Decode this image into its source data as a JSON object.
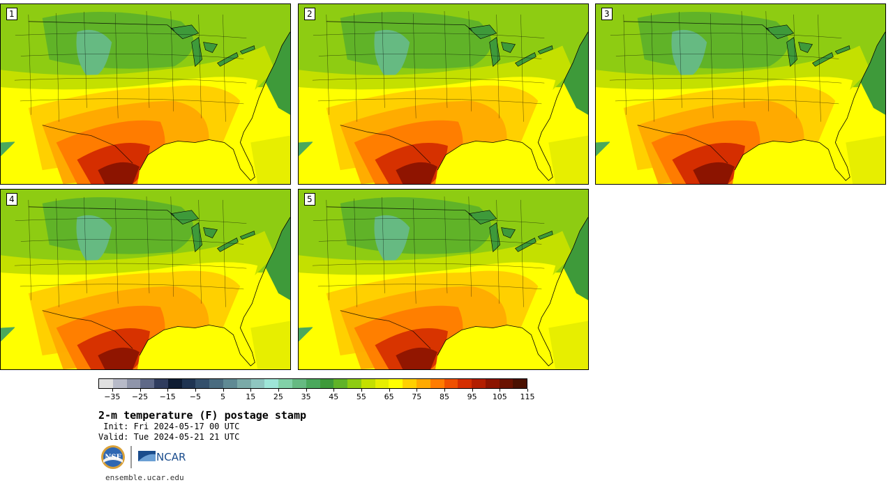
{
  "panels": [
    {
      "label": "1",
      "heat": 1.0
    },
    {
      "label": "2",
      "heat": 0.92
    },
    {
      "label": "3",
      "heat": 0.97
    },
    {
      "label": "4",
      "heat": 0.9
    },
    {
      "label": "5",
      "heat": 0.88
    }
  ],
  "colorbar": {
    "min": -40,
    "max": 120,
    "step": 5,
    "tick_labels": [
      "−35",
      "−25",
      "−15",
      "−5",
      "5",
      "15",
      "25",
      "35",
      "45",
      "55",
      "65",
      "75",
      "85",
      "95",
      "105",
      "115"
    ],
    "colors": [
      "#e0e0e0",
      "#b7bac8",
      "#8f95aa",
      "#5f6988",
      "#2f3c5e",
      "#0e1c33",
      "#1f3452",
      "#34506c",
      "#4a6c80",
      "#5f8a94",
      "#7aaaa8",
      "#8fc6c0",
      "#9ee6d8",
      "#82d1a8",
      "#66ba82",
      "#4aa85c",
      "#3e9a3a",
      "#60b328",
      "#8ecc12",
      "#c4e000",
      "#e7ee00",
      "#ffff00",
      "#ffd000",
      "#ffaa00",
      "#ff7c00",
      "#ef5000",
      "#d52e00",
      "#b21e00",
      "#8c1400",
      "#6a1200",
      "#4a1000"
    ]
  },
  "title": "2-m temperature (F) postage stamp",
  "init_text": " Init: Fri 2024-05-17 00 UTC",
  "valid_text": "Valid: Tue 2024-05-21 21 UTC",
  "logos": {
    "nsf_text": "NSF",
    "ncar_text": "NCAR"
  },
  "url": "ensemble.ucar.edu"
}
